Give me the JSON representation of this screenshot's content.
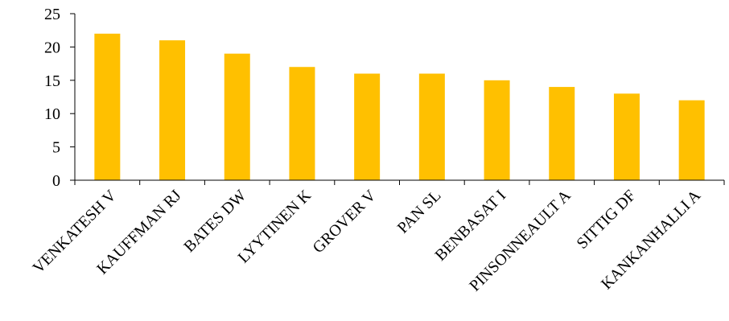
{
  "chart_data": {
    "type": "bar",
    "categories": [
      "VENKATESH V",
      "KAUFFMAN RJ",
      "BATES DW",
      "LYYTINEN K",
      "GROVER V",
      "PAN SL",
      "BENBASAT I",
      "PINSONNEAULT A",
      "SITTIG DF",
      "KANKANHALLI A"
    ],
    "values": [
      22,
      21,
      19,
      17,
      16,
      16,
      15,
      14,
      13,
      12
    ],
    "title": "",
    "xlabel": "",
    "ylabel": "",
    "ylim": [
      0,
      25
    ],
    "yticks": [
      0,
      5,
      10,
      15,
      20,
      25
    ],
    "grid": false,
    "legend": "none",
    "bar_color": "#FFC000"
  }
}
